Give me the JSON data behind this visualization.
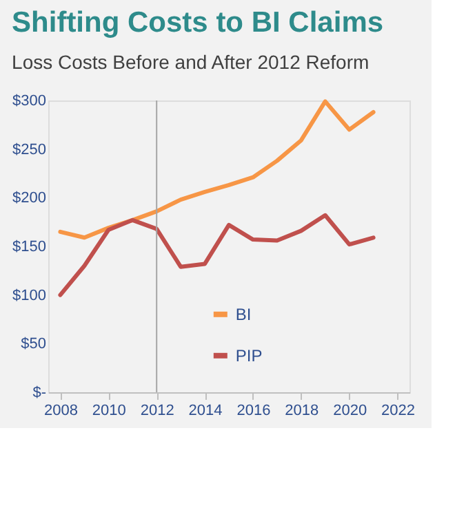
{
  "chart_data": {
    "type": "line",
    "title": "Shifting Costs to BI Claims",
    "subtitle": "Loss Costs Before and After 2012 Reform",
    "x": [
      2008,
      2009,
      2010,
      2011,
      2012,
      2013,
      2014,
      2015,
      2016,
      2017,
      2018,
      2019,
      2020,
      2021
    ],
    "series": [
      {
        "name": "BI",
        "color": "#f79646",
        "values": [
          165,
          159,
          169,
          177,
          186,
          198,
          206,
          213,
          221,
          238,
          259,
          299,
          270,
          288
        ]
      },
      {
        "name": "PIP",
        "color": "#c0504d",
        "values": [
          100,
          130,
          167,
          177,
          168,
          129,
          132,
          172,
          157,
          156,
          166,
          182,
          152,
          159
        ]
      }
    ],
    "xlim": [
      2007.5,
      2022.5
    ],
    "xticks": [
      2008,
      2010,
      2012,
      2014,
      2016,
      2018,
      2020,
      2022
    ],
    "ylim": [
      0,
      300
    ],
    "yticks": [
      {
        "value": 0,
        "label": "$-"
      },
      {
        "value": 50,
        "label": "$50"
      },
      {
        "value": 100,
        "label": "$100"
      },
      {
        "value": 150,
        "label": "$150"
      },
      {
        "value": 200,
        "label": "$200"
      },
      {
        "value": 250,
        "label": "$250"
      },
      {
        "value": 300,
        "label": "$300"
      }
    ],
    "ref_lines": [
      {
        "axis": "x",
        "value": 2012,
        "color": "#a6a6a6"
      }
    ],
    "grid": false,
    "legend": "bottom",
    "marker": "none",
    "line_style": "solid"
  }
}
